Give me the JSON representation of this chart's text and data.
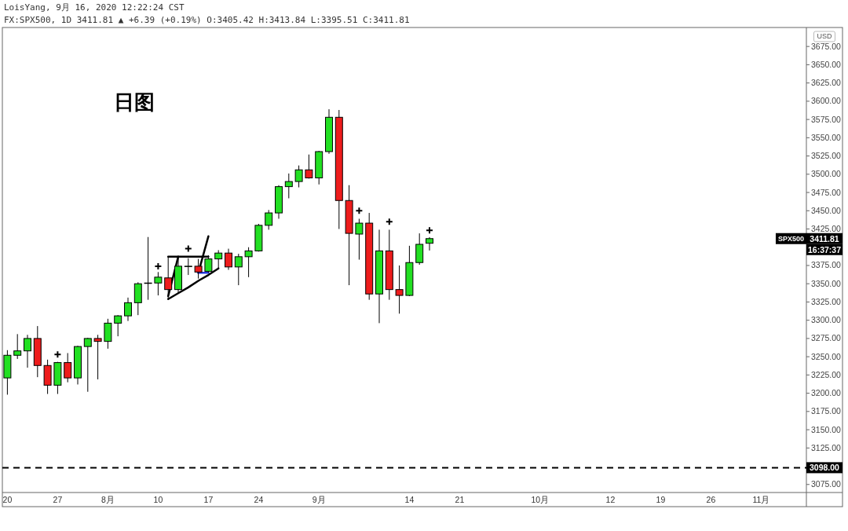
{
  "chart_data": {
    "type": "candlestick",
    "title": "LoisYang, 9月 16, 2020 12:22:24 CST",
    "subtitle": "FX:SPX500, 1D 3411.81 ▲ +6.39 (+0.19%) O:3405.42 H:3413.84 L:3395.51 C:3411.81",
    "ylabel": "USD",
    "annotations": [
      "日图",
      {
        "text": "SPX500",
        "y": 3411.81
      },
      "3411.81",
      "16:37:37"
    ],
    "categories": [
      "20",
      null,
      null,
      null,
      null,
      "27",
      null,
      null,
      null,
      null,
      "8月",
      null,
      null,
      null,
      null,
      "10",
      null,
      null,
      null,
      null,
      "17",
      null,
      null,
      null,
      null,
      "24",
      null,
      null,
      null,
      null,
      null,
      "9月",
      null,
      null,
      null,
      null,
      null,
      null,
      null,
      null,
      "14",
      null,
      null,
      null,
      null,
      "21",
      null,
      null,
      null,
      null,
      null,
      null,
      null,
      "10月",
      null,
      null,
      null,
      null,
      null,
      null,
      "12",
      null,
      null,
      null,
      null,
      "19",
      null,
      null,
      null,
      null,
      "26",
      null,
      null,
      null,
      null,
      "11月",
      null,
      null,
      null,
      null
    ],
    "ohlc": [
      [
        3221,
        3259,
        3198,
        3252
      ],
      [
        3252,
        3281,
        3247,
        3258
      ],
      [
        3258,
        3280,
        3235,
        3275
      ],
      [
        3275,
        3292,
        3222,
        3238
      ],
      [
        3238,
        3246,
        3199,
        3211
      ],
      [
        3211,
        3243,
        3199,
        3242
      ],
      [
        3242,
        3255,
        3215,
        3221
      ],
      [
        3221,
        3265,
        3212,
        3264
      ],
      [
        3264,
        3276,
        3202,
        3275
      ],
      [
        3275,
        3280,
        3219,
        3271
      ],
      [
        3271,
        3302,
        3261,
        3296
      ],
      [
        3296,
        3307,
        3278,
        3306
      ],
      [
        3306,
        3331,
        3299,
        3324
      ],
      [
        3324,
        3352,
        3307,
        3350
      ],
      [
        3351,
        3414,
        3328,
        3351
      ],
      [
        3351,
        3366,
        3334,
        3359
      ],
      [
        3358,
        3387,
        3328,
        3342
      ],
      [
        3342,
        3385,
        3338,
        3374
      ],
      [
        3374,
        3385,
        3362,
        3374
      ],
      [
        3374,
        3384,
        3357,
        3366
      ],
      [
        3367,
        3389,
        3365,
        3384
      ],
      [
        3384,
        3396,
        3371,
        3392
      ],
      [
        3392,
        3398,
        3369,
        3373
      ],
      [
        3373,
        3391,
        3348,
        3387
      ],
      [
        3387,
        3400,
        3359,
        3395
      ],
      [
        3395,
        3432,
        3394,
        3430
      ],
      [
        3430,
        3451,
        3424,
        3447
      ],
      [
        3447,
        3485,
        3439,
        3483
      ],
      [
        3483,
        3501,
        3467,
        3490
      ],
      [
        3490,
        3512,
        3482,
        3506
      ],
      [
        3506,
        3527,
        3494,
        3495
      ],
      [
        3495,
        3532,
        3486,
        3531
      ],
      [
        3531,
        3589,
        3528,
        3578
      ],
      [
        3578,
        3588,
        3425,
        3464
      ],
      [
        3464,
        3485,
        3348,
        3419
      ],
      [
        3418,
        3439,
        3383,
        3433
      ],
      [
        3433,
        3447,
        3328,
        3336
      ],
      [
        3336,
        3424,
        3296,
        3395
      ],
      [
        3395,
        3424,
        3328,
        3342
      ],
      [
        3342,
        3375,
        3309,
        3334
      ],
      [
        3334,
        3402,
        3333,
        3379
      ],
      [
        3379,
        3419,
        3376,
        3404
      ],
      [
        3405.42,
        3413.84,
        3395.51,
        3411.81
      ],
      null,
      null,
      null,
      null,
      null,
      null,
      null,
      null,
      null,
      null,
      null,
      null,
      null,
      null,
      null,
      null,
      null,
      null,
      null,
      null,
      null,
      null,
      null,
      null,
      null,
      null,
      null,
      null,
      null,
      null,
      null,
      null,
      null,
      null,
      null,
      null,
      null
    ],
    "colors": [
      "#22e022",
      "#22e022",
      "#22e022",
      "#ee1c1c",
      "#ee1c1c",
      "#22e022",
      "#ee1c1c",
      "#22e022",
      "#22e022",
      "#ee1c1c",
      "#22e022",
      "#22e022",
      "#22e022",
      "#22e022",
      "#22e022",
      "#22e022",
      "#ee1c1c",
      "#22e022",
      "#22e022",
      "#ee1c1c",
      "#22e022",
      "#22e022",
      "#ee1c1c",
      "#22e022",
      "#22e022",
      "#22e022",
      "#22e022",
      "#22e022",
      "#22e022",
      "#22e022",
      "#ee1c1c",
      "#22e022",
      "#22e022",
      "#ee1c1c",
      "#ee1c1c",
      "#22e022",
      "#ee1c1c",
      "#22e022",
      "#ee1c1c",
      "#ee1c1c",
      "#22e022",
      "#22e022",
      "#22e022",
      null,
      null,
      null,
      null,
      null,
      null,
      null,
      null,
      null,
      null,
      null,
      null,
      null,
      null,
      null,
      null,
      null,
      null,
      null,
      null,
      null,
      null,
      null,
      null,
      null,
      null,
      null,
      null,
      null,
      null,
      null,
      null,
      null,
      null,
      null,
      null,
      null
    ],
    "ylim": [
      3064,
      3701
    ],
    "yticks": [
      {
        "value": 3075,
        "label": "3075.00"
      },
      {
        "value": 3125,
        "label": "3125.00"
      },
      {
        "value": 3150,
        "label": "3150.00"
      },
      {
        "value": 3175,
        "label": "3175.00"
      },
      {
        "value": 3200,
        "label": "3200.00"
      },
      {
        "value": 3225,
        "label": "3225.00"
      },
      {
        "value": 3250,
        "label": "3250.00"
      },
      {
        "value": 3275,
        "label": "3275.00"
      },
      {
        "value": 3300,
        "label": "3300.00"
      },
      {
        "value": 3325,
        "label": "3325.00"
      },
      {
        "value": 3350,
        "label": "3350.00"
      },
      {
        "value": 3375,
        "label": "3375.00"
      },
      {
        "value": 3425,
        "label": "3425.00"
      },
      {
        "value": 3450,
        "label": "3450.00"
      },
      {
        "value": 3475,
        "label": "3475.00"
      },
      {
        "value": 3500,
        "label": "3500.00"
      },
      {
        "value": 3525,
        "label": "3525.00"
      },
      {
        "value": 3550,
        "label": "3550.00"
      },
      {
        "value": 3575,
        "label": "3575.00"
      },
      {
        "value": 3600,
        "label": "3600.00"
      },
      {
        "value": 3625,
        "label": "3625.00"
      },
      {
        "value": 3650,
        "label": "3650.00"
      },
      {
        "value": 3675,
        "label": "3675.00"
      }
    ],
    "ref_lines": [
      {
        "axis": "y",
        "value": 3098,
        "label": "3098.00",
        "color": "#000000",
        "line_style": "dashed"
      }
    ],
    "series": [
      {
        "type": "scatter",
        "marker": "cross",
        "color": "#000000",
        "values": [
          null,
          null,
          null,
          null,
          null,
          3253,
          null,
          null,
          null,
          null,
          null,
          null,
          null,
          null,
          null,
          3374,
          null,
          null,
          3398,
          null,
          null,
          null,
          null,
          null,
          null,
          null,
          null,
          null,
          null,
          null,
          null,
          null,
          null,
          null,
          null,
          3450,
          null,
          null,
          3435,
          null,
          null,
          null,
          3423,
          null,
          null,
          null,
          null,
          null,
          null,
          null,
          null,
          null,
          null,
          null,
          null,
          null,
          null,
          null,
          null,
          null,
          null,
          null,
          null,
          null,
          null,
          null,
          null,
          null,
          null,
          null,
          null,
          null,
          null,
          null,
          null,
          null,
          null,
          null,
          null,
          null
        ]
      },
      {
        "type": "line",
        "color": "#000000",
        "values": [
          null,
          null,
          null,
          null,
          null,
          null,
          null,
          null,
          null,
          null,
          null,
          null,
          null,
          null,
          null,
          null,
          3387,
          3387,
          3387,
          3387,
          3387,
          null,
          null,
          null,
          null,
          null,
          null,
          null,
          null,
          null,
          null,
          null,
          null,
          null,
          null,
          null,
          null,
          null,
          null,
          null,
          null,
          null,
          null,
          null,
          null,
          null,
          null,
          null,
          null,
          null,
          null,
          null,
          null,
          null,
          null,
          null,
          null,
          null,
          null,
          null,
          null,
          null,
          null,
          null,
          null,
          null,
          null,
          null,
          null,
          null,
          null,
          null,
          null,
          null,
          null,
          null,
          null,
          null,
          null,
          null
        ]
      },
      {
        "type": "line",
        "color": "#000000",
        "values": [
          null,
          null,
          null,
          null,
          null,
          null,
          null,
          null,
          null,
          null,
          null,
          null,
          null,
          null,
          null,
          null,
          3333,
          3387,
          null,
          null,
          null,
          null,
          null,
          null,
          null,
          null,
          null,
          null,
          null,
          null,
          null,
          null,
          null,
          null,
          null,
          null,
          null,
          null,
          null,
          null,
          null,
          null,
          null,
          null,
          null,
          null,
          null,
          null,
          null,
          null,
          null,
          null,
          null,
          null,
          null,
          null,
          null,
          null,
          null,
          null,
          null,
          null,
          null,
          null,
          null,
          null,
          null,
          null,
          null,
          null,
          null,
          null,
          null,
          null,
          null,
          null,
          null,
          null,
          null,
          null
        ]
      },
      {
        "type": "line",
        "color": "#000000",
        "values": [
          null,
          null,
          null,
          null,
          null,
          null,
          null,
          null,
          null,
          null,
          null,
          null,
          null,
          null,
          null,
          null,
          3329,
          3337,
          3345,
          3354,
          3362,
          3371,
          null,
          null,
          null,
          null,
          null,
          null,
          null,
          null,
          null,
          null,
          null,
          null,
          null,
          null,
          null,
          null,
          null,
          null,
          null,
          null,
          null,
          null,
          null,
          null,
          null,
          null,
          null,
          null,
          null,
          null,
          null,
          null,
          null,
          null,
          null,
          null,
          null,
          null,
          null,
          null,
          null,
          null,
          null,
          null,
          null,
          null,
          null,
          null,
          null,
          null,
          null,
          null,
          null,
          null,
          null,
          null,
          null,
          null
        ]
      },
      {
        "type": "line",
        "color": "#000000",
        "values": [
          null,
          null,
          null,
          null,
          null,
          null,
          null,
          null,
          null,
          null,
          null,
          null,
          null,
          null,
          null,
          null,
          null,
          null,
          null,
          3365,
          3415,
          null,
          null,
          null,
          null,
          null,
          null,
          null,
          null,
          null,
          null,
          null,
          null,
          null,
          null,
          null,
          null,
          null,
          null,
          null,
          null,
          null,
          null,
          null,
          null,
          null,
          null,
          null,
          null,
          null,
          null,
          null,
          null,
          null,
          null,
          null,
          null,
          null,
          null,
          null,
          null,
          null,
          null,
          null,
          null,
          null,
          null,
          null,
          null,
          null,
          null,
          null,
          null,
          null,
          null,
          null,
          null,
          null,
          null,
          null
        ]
      },
      {
        "type": "line",
        "color": "#2233dd",
        "values": [
          null,
          null,
          null,
          null,
          null,
          null,
          null,
          null,
          null,
          null,
          null,
          null,
          null,
          null,
          null,
          null,
          null,
          null,
          null,
          3365,
          3365,
          null,
          null,
          null,
          null,
          null,
          null,
          null,
          null,
          null,
          null,
          null,
          null,
          null,
          null,
          null,
          null,
          null,
          null,
          null,
          null,
          null,
          null,
          null,
          null,
          null,
          null,
          null,
          null,
          null,
          null,
          null,
          null,
          null,
          null,
          null,
          null,
          null,
          null,
          null,
          null,
          null,
          null,
          null,
          null,
          null,
          null,
          null,
          null,
          null,
          null,
          null,
          null,
          null,
          null,
          null,
          null,
          null,
          null,
          null
        ]
      }
    ]
  }
}
